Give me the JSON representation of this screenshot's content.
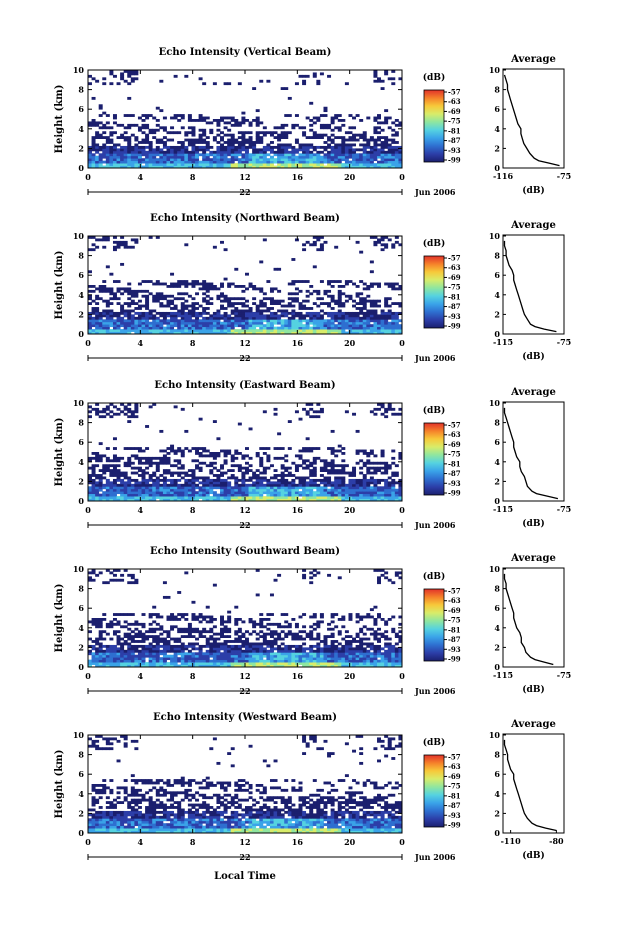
{
  "chart_data": [
    {
      "type": "heatmap",
      "title": "Echo Intensity (Vertical Beam)",
      "ylabel": "Height (km)",
      "ylim": [
        0,
        10
      ],
      "x_ticks": [
        "0",
        "4",
        "8",
        "12",
        "16",
        "20",
        "0"
      ],
      "y_ticks": [
        "0",
        "2",
        "4",
        "6",
        "8",
        "10"
      ],
      "date_label": "22",
      "month_label": "Jun 2006",
      "colorbar": {
        "unit": "(dB)",
        "ticks": [
          "-57",
          "-63",
          "-69",
          "-75",
          "-81",
          "-87",
          "-93",
          "-99"
        ]
      },
      "average": {
        "title": "Average",
        "xlabel": "(dB)",
        "x_ticks": [
          "-116",
          "-75"
        ],
        "xlim": [
          -116,
          -75
        ],
        "y_ticks": [
          "0",
          "2",
          "4",
          "6",
          "8",
          "10"
        ],
        "heights": [
          0.25,
          0.5,
          0.75,
          1.0,
          1.5,
          2.0,
          2.5,
          3.0,
          3.5,
          4.0,
          4.5,
          5.0,
          5.5,
          6.0,
          6.5,
          7.0,
          7.5,
          8.0,
          8.5,
          9.0,
          9.5
        ],
        "values": [
          -78,
          -85,
          -92,
          -95,
          -98,
          -100,
          -102,
          -103,
          -104,
          -104,
          -106,
          -107,
          -108,
          -109,
          -110,
          -111,
          -112,
          -113,
          -113,
          -114,
          -115
        ]
      }
    },
    {
      "type": "heatmap",
      "title": "Echo Intensity (Northward Beam)",
      "ylabel": "Height (km)",
      "ylim": [
        0,
        10
      ],
      "x_ticks": [
        "0",
        "4",
        "8",
        "12",
        "16",
        "20",
        "0"
      ],
      "y_ticks": [
        "0",
        "2",
        "4",
        "6",
        "8",
        "10"
      ],
      "date_label": "22",
      "month_label": "Jun 2006",
      "colorbar": {
        "unit": "(dB)",
        "ticks": [
          "-57",
          "-63",
          "-69",
          "-75",
          "-81",
          "-87",
          "-93",
          "-99"
        ]
      },
      "average": {
        "title": "Average",
        "xlabel": "(dB)",
        "x_ticks": [
          "-115",
          "-75"
        ],
        "xlim": [
          -115,
          -75
        ],
        "y_ticks": [
          "0",
          "2",
          "4",
          "6",
          "8",
          "10"
        ],
        "heights": [
          0.25,
          0.5,
          0.75,
          1.0,
          1.5,
          2.0,
          2.5,
          3.0,
          3.5,
          4.0,
          4.5,
          5.0,
          5.5,
          6.0,
          6.5,
          7.0,
          7.5,
          8.0,
          8.5,
          9.0,
          9.5
        ],
        "values": [
          -80,
          -88,
          -94,
          -97,
          -99,
          -101,
          -102,
          -103,
          -104,
          -105,
          -106,
          -107,
          -108,
          -108,
          -109,
          -111,
          -112,
          -113,
          -113,
          -114,
          -114
        ]
      }
    },
    {
      "type": "heatmap",
      "title": "Echo Intensity (Eastward Beam)",
      "ylabel": "Height (km)",
      "ylim": [
        0,
        10
      ],
      "x_ticks": [
        "0",
        "4",
        "8",
        "12",
        "16",
        "20",
        "0"
      ],
      "y_ticks": [
        "0",
        "2",
        "4",
        "6",
        "8",
        "10"
      ],
      "date_label": "22",
      "month_label": "Jun 2006",
      "colorbar": {
        "unit": "(dB)",
        "ticks": [
          "-57",
          "-63",
          "-69",
          "-75",
          "-81",
          "-87",
          "-93",
          "-99"
        ]
      },
      "average": {
        "title": "Average",
        "xlabel": "(dB)",
        "x_ticks": [
          "-115",
          "-75"
        ],
        "xlim": [
          -115,
          -75
        ],
        "y_ticks": [
          "0",
          "2",
          "4",
          "6",
          "8",
          "10"
        ],
        "heights": [
          0.25,
          0.5,
          0.75,
          1.0,
          1.5,
          2.0,
          2.5,
          3.0,
          3.5,
          4.0,
          4.5,
          5.0,
          5.5,
          6.0,
          6.5,
          7.0,
          7.5,
          8.0,
          8.5,
          9.0,
          9.5
        ],
        "values": [
          -79,
          -86,
          -93,
          -96,
          -99,
          -100,
          -101,
          -103,
          -104,
          -104,
          -106,
          -107,
          -108,
          -108,
          -109,
          -110,
          -111,
          -112,
          -113,
          -114,
          -114
        ]
      }
    },
    {
      "type": "heatmap",
      "title": "Echo Intensity (Southward Beam)",
      "ylabel": "Height (km)",
      "ylim": [
        0,
        10
      ],
      "x_ticks": [
        "0",
        "4",
        "8",
        "12",
        "16",
        "20",
        "0"
      ],
      "y_ticks": [
        "0",
        "2",
        "4",
        "6",
        "8",
        "10"
      ],
      "date_label": "22",
      "month_label": "Jun 2006",
      "colorbar": {
        "unit": "(dB)",
        "ticks": [
          "-57",
          "-63",
          "-69",
          "-75",
          "-81",
          "-87",
          "-93",
          "-99"
        ]
      },
      "average": {
        "title": "Average",
        "xlabel": "(dB)",
        "x_ticks": [
          "-115",
          "-75"
        ],
        "xlim": [
          -115,
          -75
        ],
        "y_ticks": [
          "0",
          "2",
          "4",
          "6",
          "8",
          "10"
        ],
        "heights": [
          0.25,
          0.5,
          0.75,
          1.0,
          1.5,
          2.0,
          2.5,
          3.0,
          3.5,
          4.0,
          4.5,
          5.0,
          5.5,
          6.0,
          6.5,
          7.0,
          7.5,
          8.0,
          8.5,
          9.0,
          9.5
        ],
        "values": [
          -82,
          -88,
          -94,
          -97,
          -100,
          -101,
          -103,
          -103,
          -104,
          -106,
          -107,
          -108,
          -108,
          -109,
          -110,
          -111,
          -112,
          -113,
          -113,
          -114,
          -114
        ]
      }
    },
    {
      "type": "heatmap",
      "title": "Echo Intensity (Westward Beam)",
      "ylabel": "Height (km)",
      "ylim": [
        0,
        10
      ],
      "x_ticks": [
        "0",
        "4",
        "8",
        "12",
        "16",
        "20",
        "0"
      ],
      "y_ticks": [
        "0",
        "2",
        "4",
        "6",
        "8",
        "10"
      ],
      "date_label": "22",
      "month_label": "Jun 2006",
      "colorbar": {
        "unit": "(dB)",
        "ticks": [
          "-57",
          "-63",
          "-69",
          "-75",
          "-81",
          "-87",
          "-93",
          "-99"
        ]
      },
      "average": {
        "title": "Average",
        "xlabel": "(dB)",
        "x_ticks": [
          "-110",
          "-80"
        ],
        "xlim": [
          -115,
          -75
        ],
        "y_ticks": [
          "0",
          "2",
          "4",
          "6",
          "8",
          "10"
        ],
        "heights": [
          0.25,
          0.5,
          0.75,
          1.0,
          1.5,
          2.0,
          2.5,
          3.0,
          3.5,
          4.0,
          4.5,
          5.0,
          5.5,
          6.0,
          6.5,
          7.0,
          7.5,
          8.0,
          8.5,
          9.0,
          9.5
        ],
        "values": [
          -80,
          -87,
          -93,
          -96,
          -99,
          -101,
          -102,
          -103,
          -104,
          -105,
          -106,
          -107,
          -108,
          -108,
          -110,
          -111,
          -112,
          -112,
          -113,
          -114,
          -114
        ]
      }
    }
  ],
  "xlabel": "Local Time",
  "colors": {
    "scale": [
      "#1b1f6e",
      "#2c3ea8",
      "#2e6fd0",
      "#3aa3e8",
      "#55d2e0",
      "#8fe6a0",
      "#d8ec6a",
      "#f7c93a",
      "#f5812a",
      "#e2322a"
    ]
  }
}
